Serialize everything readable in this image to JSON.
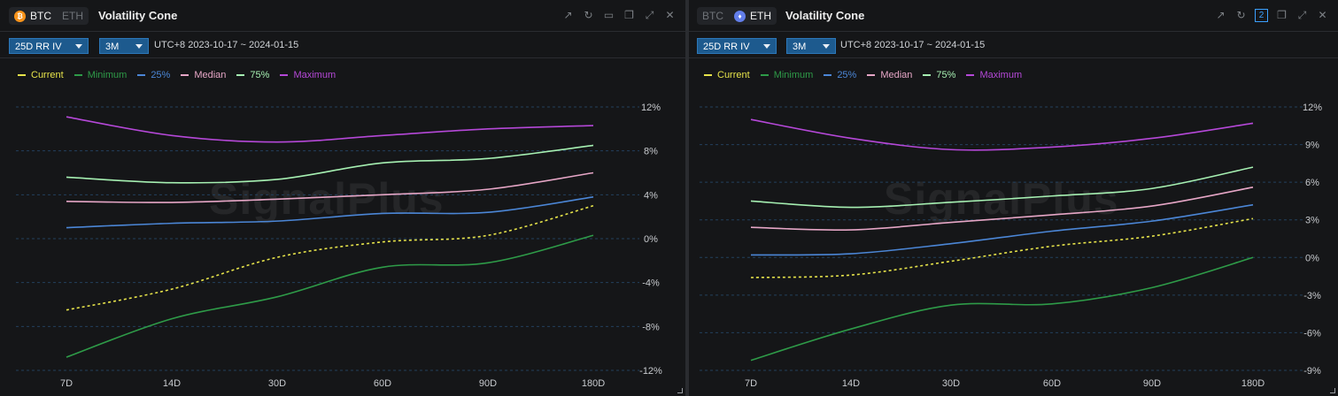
{
  "panels": [
    {
      "tabs": [
        "BTC",
        "ETH"
      ],
      "active_tab": 0,
      "coin_glyph": "₿",
      "title": "Volatility Cone",
      "metric_select": "25D RR IV",
      "period_select": "3M",
      "date_range": "UTC+8 2023-10-17 ~ 2024-01-15",
      "watermark": "SignalPlus",
      "toolbar_icons": [
        "external-link-icon",
        "refresh-icon",
        "folder-icon",
        "copy-icon",
        "expand-icon",
        "close-icon"
      ]
    },
    {
      "tabs": [
        "BTC",
        "ETH"
      ],
      "active_tab": 1,
      "coin_glyph": "♦",
      "title": "Volatility Cone",
      "metric_select": "25D RR IV",
      "period_select": "3M",
      "date_range": "UTC+8 2023-10-17 ~ 2024-01-15",
      "watermark": "SignalPlus",
      "badge": "2",
      "toolbar_icons": [
        "external-link-icon",
        "refresh-icon",
        "badge-icon",
        "copy-icon",
        "expand-icon",
        "close-icon"
      ]
    }
  ],
  "colors": {
    "Current": "#e6e34a",
    "Minimum": "#2e9b48",
    "25%": "#4b86d6",
    "Median": "#e6a6c6",
    "75%": "#a6f0b2",
    "Maximum": "#b548d8"
  },
  "chart_data": [
    {
      "type": "line",
      "asset": "BTC",
      "x": [
        "7D",
        "14D",
        "30D",
        "60D",
        "90D",
        "180D"
      ],
      "yticks": [
        "12%",
        "8%",
        "4%",
        "0%",
        "-4%",
        "-8%",
        "-12%"
      ],
      "ylim": [
        -12,
        12
      ],
      "series": [
        {
          "name": "Maximum",
          "values": [
            11.1,
            9.4,
            8.8,
            9.4,
            10.0,
            10.3
          ]
        },
        {
          "name": "75%",
          "values": [
            5.6,
            5.1,
            5.4,
            6.9,
            7.3,
            8.5
          ]
        },
        {
          "name": "Median",
          "values": [
            3.4,
            3.3,
            3.6,
            4.0,
            4.5,
            6.0
          ]
        },
        {
          "name": "25%",
          "values": [
            1.0,
            1.4,
            1.6,
            2.3,
            2.4,
            3.8
          ]
        },
        {
          "name": "Current",
          "values": [
            -6.5,
            -4.6,
            -1.7,
            -0.3,
            0.3,
            3.0
          ]
        },
        {
          "name": "Minimum",
          "values": [
            -10.8,
            -7.3,
            -5.3,
            -2.6,
            -2.2,
            0.3
          ]
        }
      ],
      "legend": [
        "Current",
        "Minimum",
        "25%",
        "Median",
        "75%",
        "Maximum"
      ]
    },
    {
      "type": "line",
      "asset": "ETH",
      "x": [
        "7D",
        "14D",
        "30D",
        "60D",
        "90D",
        "180D"
      ],
      "yticks": [
        "12%",
        "9%",
        "6%",
        "3%",
        "0%",
        "-3%",
        "-6%",
        "-9%"
      ],
      "ylim": [
        -9,
        12
      ],
      "series": [
        {
          "name": "Maximum",
          "values": [
            11.0,
            9.5,
            8.6,
            8.8,
            9.5,
            10.7
          ]
        },
        {
          "name": "75%",
          "values": [
            4.5,
            4.0,
            4.4,
            4.9,
            5.5,
            7.2
          ]
        },
        {
          "name": "Median",
          "values": [
            2.4,
            2.2,
            2.8,
            3.4,
            4.1,
            5.6
          ]
        },
        {
          "name": "25%",
          "values": [
            0.2,
            0.3,
            1.1,
            2.1,
            2.9,
            4.2
          ]
        },
        {
          "name": "Current",
          "values": [
            -1.6,
            -1.4,
            -0.3,
            0.9,
            1.7,
            3.1
          ]
        },
        {
          "name": "Minimum",
          "values": [
            -8.2,
            -5.7,
            -3.8,
            -3.7,
            -2.4,
            0.0
          ]
        }
      ],
      "legend": [
        "Current",
        "Minimum",
        "25%",
        "Median",
        "75%",
        "Maximum"
      ]
    }
  ]
}
